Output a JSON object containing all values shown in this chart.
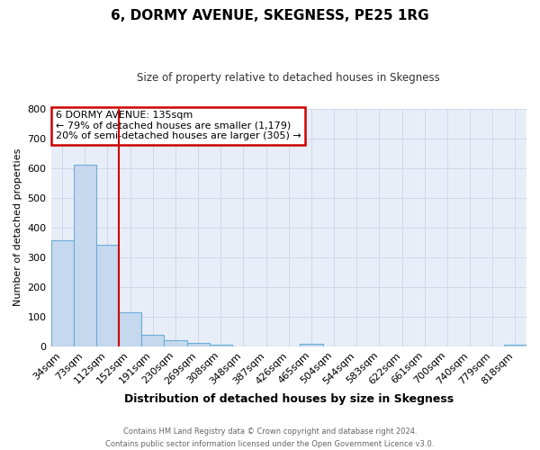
{
  "title": "6, DORMY AVENUE, SKEGNESS, PE25 1RG",
  "subtitle": "Size of property relative to detached houses in Skegness",
  "xlabel": "Distribution of detached houses by size in Skegness",
  "ylabel": "Number of detached properties",
  "bar_labels": [
    "34sqm",
    "73sqm",
    "112sqm",
    "152sqm",
    "191sqm",
    "230sqm",
    "269sqm",
    "308sqm",
    "348sqm",
    "387sqm",
    "426sqm",
    "465sqm",
    "504sqm",
    "544sqm",
    "583sqm",
    "622sqm",
    "661sqm",
    "700sqm",
    "740sqm",
    "779sqm",
    "818sqm"
  ],
  "bar_values": [
    357,
    611,
    343,
    113,
    40,
    22,
    13,
    6,
    0,
    0,
    0,
    8,
    0,
    0,
    0,
    0,
    0,
    0,
    0,
    0,
    6
  ],
  "bar_color": "#c5d8ee",
  "bar_edgecolor": "#6aaed6",
  "vline_color": "#cc0000",
  "vline_position": 2.5,
  "ylim": [
    0,
    800
  ],
  "yticks": [
    0,
    100,
    200,
    300,
    400,
    500,
    600,
    700,
    800
  ],
  "annotation_text_line1": "6 DORMY AVENUE: 135sqm",
  "annotation_text_line2": "← 79% of detached houses are smaller (1,179)",
  "annotation_text_line3": "20% of semi-detached houses are larger (305) →",
  "annotation_box_color": "#cc0000",
  "annotation_bg": "#ffffff",
  "footer_line1": "Contains HM Land Registry data © Crown copyright and database right 2024.",
  "footer_line2": "Contains public sector information licensed under the Open Government Licence v3.0.",
  "grid_color": "#d0d8e8",
  "bg_color": "#ffffff",
  "plot_bg_color": "#e8eef8",
  "figsize": [
    6.0,
    5.0
  ],
  "dpi": 100
}
